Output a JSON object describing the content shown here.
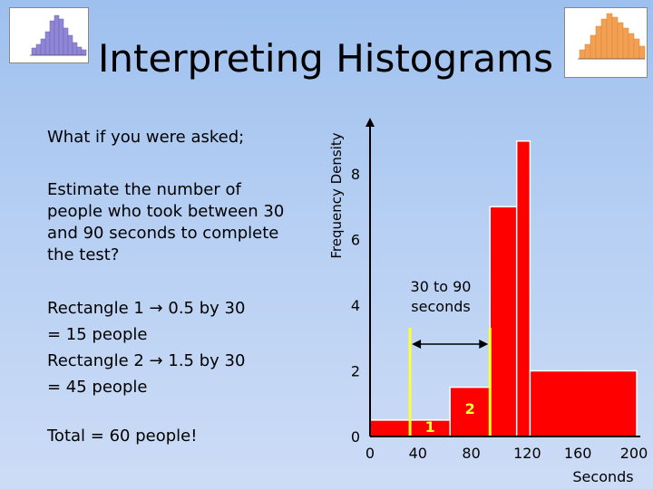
{
  "slide": {
    "title": "Interpreting Histograms",
    "question_intro": "What if you were asked;",
    "question": "Estimate the number of people who took between 30 and 90 seconds to complete the test?",
    "answer_lines": [
      "Rectangle 1 → 0.5 by 30",
      "= 15 people",
      "Rectangle 2 → 1.5 by 30",
      "= 45 people"
    ],
    "total": "Total = 60 people!"
  },
  "colors": {
    "bar": "#ff0000",
    "bar_edge": "#ffffff",
    "marker": "#ffff33",
    "axis": "#000000"
  },
  "chart_data": {
    "type": "bar",
    "histogram": true,
    "ylabel": "Frequency Density",
    "xlabel": "Seconds",
    "x_ticks": [
      "0",
      "40",
      "80",
      "120",
      "160",
      "200"
    ],
    "y_ticks": [
      "0",
      "2",
      "4",
      "6",
      "8"
    ],
    "bins": [
      {
        "from": 0,
        "to": 30,
        "density": 0.5
      },
      {
        "from": 30,
        "to": 60,
        "density": 0.5
      },
      {
        "from": 60,
        "to": 90,
        "density": 1.5
      },
      {
        "from": 90,
        "to": 110,
        "density": 7
      },
      {
        "from": 110,
        "to": 120,
        "density": 9
      },
      {
        "from": 120,
        "to": 200,
        "density": 2
      }
    ],
    "annotation": "30 to 90 seconds",
    "annotation_lines": [
      "30 to 90",
      "seconds"
    ],
    "highlight_range": [
      30,
      90
    ],
    "rect_labels": [
      {
        "text": "1",
        "x": 45,
        "y": 0.2
      },
      {
        "text": "2",
        "x": 75,
        "y": 0.75
      }
    ],
    "ylim": [
      0,
      10
    ],
    "xlim": [
      0,
      200
    ]
  }
}
